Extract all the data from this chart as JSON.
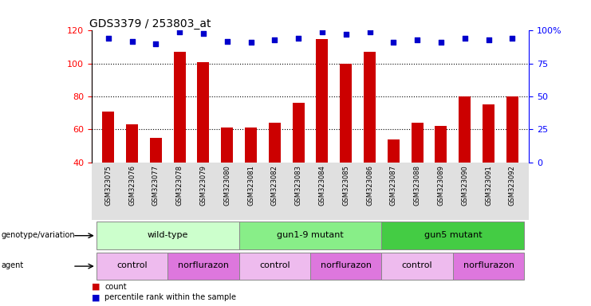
{
  "title": "GDS3379 / 253803_at",
  "samples": [
    "GSM323075",
    "GSM323076",
    "GSM323077",
    "GSM323078",
    "GSM323079",
    "GSM323080",
    "GSM323081",
    "GSM323082",
    "GSM323083",
    "GSM323084",
    "GSM323085",
    "GSM323086",
    "GSM323087",
    "GSM323088",
    "GSM323089",
    "GSM323090",
    "GSM323091",
    "GSM323092"
  ],
  "counts": [
    71,
    63,
    55,
    107,
    101,
    61,
    61,
    64,
    76,
    115,
    100,
    107,
    54,
    64,
    62,
    80,
    75,
    80
  ],
  "percentile_ranks": [
    94,
    92,
    90,
    99,
    98,
    92,
    91,
    93,
    94,
    99,
    97,
    99,
    91,
    93,
    91,
    94,
    93,
    94
  ],
  "ylim_left": [
    40,
    120
  ],
  "ylim_right": [
    0,
    100
  ],
  "yticks_left": [
    40,
    60,
    80,
    100,
    120
  ],
  "yticks_right": [
    0,
    25,
    50,
    75,
    100
  ],
  "ytick_labels_right": [
    "0",
    "25",
    "50",
    "75",
    "100%"
  ],
  "bar_color": "#cc0000",
  "dot_color": "#0000cc",
  "bar_bottom": 40,
  "groups": [
    {
      "label": "wild-type",
      "start": 0,
      "end": 5,
      "color": "#ccffcc"
    },
    {
      "label": "gun1-9 mutant",
      "start": 6,
      "end": 11,
      "color": "#88ee88"
    },
    {
      "label": "gun5 mutant",
      "start": 12,
      "end": 17,
      "color": "#44cc44"
    }
  ],
  "agents": [
    {
      "label": "control",
      "start": 0,
      "end": 2,
      "color": "#eebbee"
    },
    {
      "label": "norflurazon",
      "start": 3,
      "end": 5,
      "color": "#dd77dd"
    },
    {
      "label": "control",
      "start": 6,
      "end": 8,
      "color": "#eebbee"
    },
    {
      "label": "norflurazon",
      "start": 9,
      "end": 11,
      "color": "#dd77dd"
    },
    {
      "label": "control",
      "start": 12,
      "end": 14,
      "color": "#eebbee"
    },
    {
      "label": "norflurazon",
      "start": 15,
      "end": 17,
      "color": "#dd77dd"
    }
  ],
  "legend_count_color": "#cc0000",
  "legend_dot_color": "#0000cc",
  "title_fontsize": 10,
  "tick_fontsize": 8,
  "sample_fontsize": 6
}
